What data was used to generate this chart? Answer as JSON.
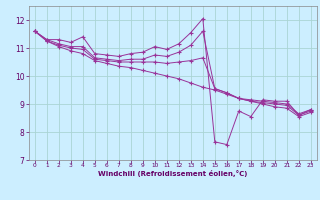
{
  "xlabel": "Windchill (Refroidissement éolien,°C)",
  "background_color": "#cceeff",
  "grid_color": "#aad4d4",
  "line_color": "#993399",
  "xlim": [
    -0.5,
    23.5
  ],
  "ylim": [
    7,
    12.5
  ],
  "xticks": [
    0,
    1,
    2,
    3,
    4,
    5,
    6,
    7,
    8,
    9,
    10,
    11,
    12,
    13,
    14,
    15,
    16,
    17,
    18,
    19,
    20,
    21,
    22,
    23
  ],
  "yticks": [
    7,
    8,
    9,
    10,
    11,
    12
  ],
  "series1": [
    [
      0,
      11.6
    ],
    [
      1,
      11.3
    ],
    [
      2,
      11.3
    ],
    [
      3,
      11.2
    ],
    [
      4,
      11.4
    ],
    [
      5,
      10.8
    ],
    [
      6,
      10.75
    ],
    [
      7,
      10.7
    ],
    [
      8,
      10.8
    ],
    [
      9,
      10.85
    ],
    [
      10,
      11.05
    ],
    [
      11,
      10.95
    ],
    [
      12,
      11.15
    ],
    [
      13,
      11.55
    ],
    [
      14,
      12.05
    ],
    [
      15,
      7.65
    ],
    [
      16,
      7.55
    ],
    [
      17,
      8.75
    ],
    [
      18,
      8.55
    ],
    [
      19,
      9.15
    ],
    [
      20,
      9.1
    ],
    [
      21,
      9.1
    ],
    [
      22,
      8.6
    ],
    [
      23,
      8.8
    ]
  ],
  "series2": [
    [
      0,
      11.6
    ],
    [
      1,
      11.3
    ],
    [
      2,
      11.15
    ],
    [
      3,
      11.05
    ],
    [
      4,
      11.05
    ],
    [
      5,
      10.65
    ],
    [
      6,
      10.6
    ],
    [
      7,
      10.55
    ],
    [
      8,
      10.6
    ],
    [
      9,
      10.6
    ],
    [
      10,
      10.75
    ],
    [
      11,
      10.7
    ],
    [
      12,
      10.85
    ],
    [
      13,
      11.1
    ],
    [
      14,
      11.6
    ],
    [
      15,
      9.55
    ],
    [
      16,
      9.4
    ],
    [
      17,
      9.2
    ],
    [
      18,
      9.15
    ],
    [
      19,
      9.1
    ],
    [
      20,
      9.05
    ],
    [
      21,
      9.0
    ],
    [
      22,
      8.65
    ],
    [
      23,
      8.8
    ]
  ],
  "series3": [
    [
      0,
      11.6
    ],
    [
      1,
      11.25
    ],
    [
      2,
      11.1
    ],
    [
      3,
      11.0
    ],
    [
      4,
      10.95
    ],
    [
      5,
      10.6
    ],
    [
      6,
      10.55
    ],
    [
      7,
      10.5
    ],
    [
      8,
      10.5
    ],
    [
      9,
      10.5
    ],
    [
      10,
      10.5
    ],
    [
      11,
      10.45
    ],
    [
      12,
      10.5
    ],
    [
      13,
      10.55
    ],
    [
      14,
      10.65
    ],
    [
      15,
      9.55
    ],
    [
      16,
      9.4
    ],
    [
      17,
      9.2
    ],
    [
      18,
      9.1
    ],
    [
      19,
      9.05
    ],
    [
      20,
      9.0
    ],
    [
      21,
      8.95
    ],
    [
      22,
      8.6
    ],
    [
      23,
      8.75
    ]
  ],
  "series4": [
    [
      0,
      11.6
    ],
    [
      1,
      11.25
    ],
    [
      2,
      11.05
    ],
    [
      3,
      10.9
    ],
    [
      4,
      10.8
    ],
    [
      5,
      10.55
    ],
    [
      6,
      10.45
    ],
    [
      7,
      10.35
    ],
    [
      8,
      10.3
    ],
    [
      9,
      10.2
    ],
    [
      10,
      10.1
    ],
    [
      11,
      10.0
    ],
    [
      12,
      9.9
    ],
    [
      13,
      9.75
    ],
    [
      14,
      9.6
    ],
    [
      15,
      9.5
    ],
    [
      16,
      9.35
    ],
    [
      17,
      9.2
    ],
    [
      18,
      9.1
    ],
    [
      19,
      9.0
    ],
    [
      20,
      8.9
    ],
    [
      21,
      8.85
    ],
    [
      22,
      8.55
    ],
    [
      23,
      8.7
    ]
  ]
}
